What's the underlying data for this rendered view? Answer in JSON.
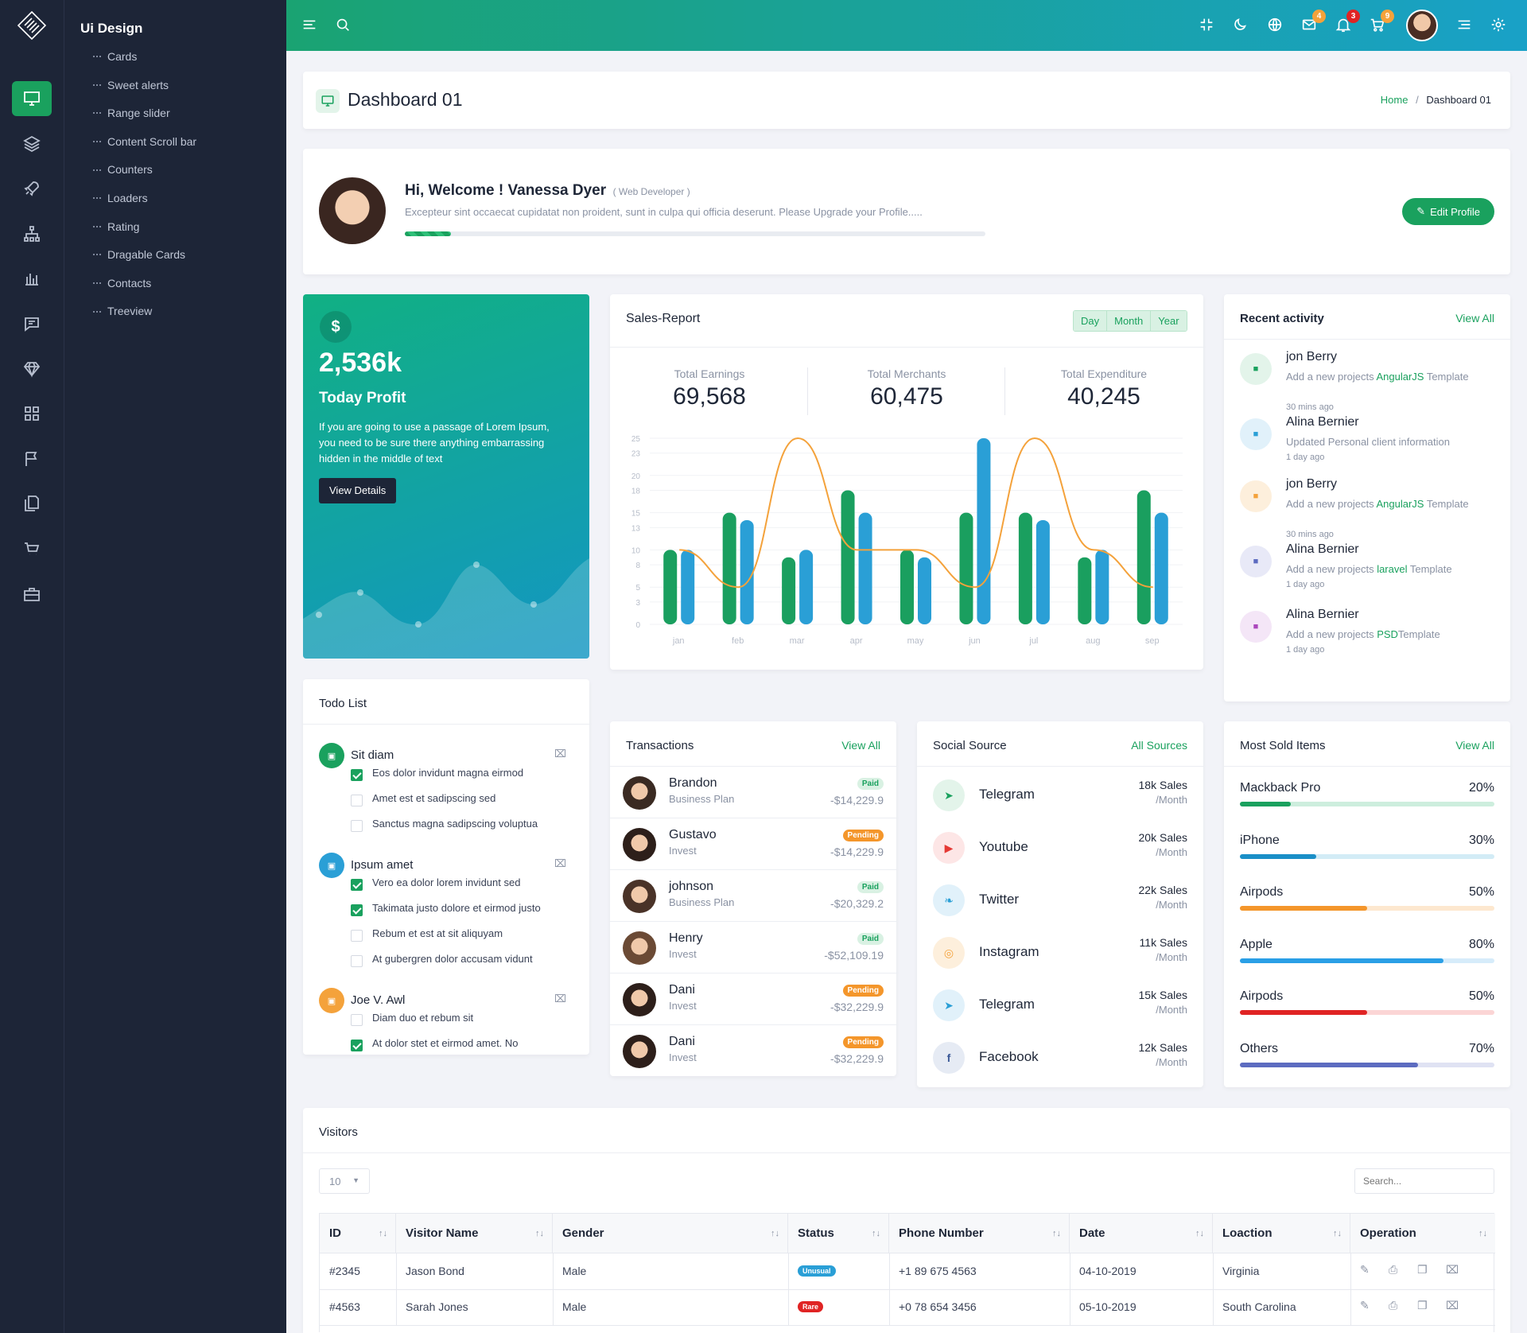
{
  "sidebar": {
    "title": "Ui Design",
    "items": [
      "Cards",
      "Sweet alerts",
      "Range slider",
      "Content Scroll bar",
      "Counters",
      "Loaders",
      "Rating",
      "Dragable Cards",
      "Contacts",
      "Treeview"
    ],
    "rail_icons": [
      "monitor-icon",
      "layers-icon",
      "rocket-icon",
      "sitemap-icon",
      "bar-chart-icon",
      "chat-icon",
      "diamond-icon",
      "grid-icon",
      "flag-icon",
      "copy-icon",
      "cart-icon",
      "briefcase-icon"
    ]
  },
  "topbar": {
    "badges": {
      "mail": "4",
      "bell": "3",
      "cart": "9"
    },
    "colors": {
      "from": "#1aa372",
      "to": "#19a1c7"
    }
  },
  "page": {
    "title": "Dashboard 01",
    "breadcrumb_home": "Home",
    "breadcrumb_current": "Dashboard 01"
  },
  "welcome": {
    "greeting": "Hi, Welcome ! Vanessa Dyer",
    "role": "( Web Developer )",
    "text": "Excepteur sint occaecat cupidatat non proident, sunt in culpa qui officia deserunt. Please Upgrade your Profile.....",
    "button": "Edit Profile",
    "progress": 0.08
  },
  "profit": {
    "symbol": "$",
    "value": "2,536k",
    "label": "Today Profit",
    "text": "If you are going to use a passage of Lorem Ipsum, you need to be sure there anything embarrassing hidden in the middle of text",
    "button": "View Details"
  },
  "sales": {
    "title": "Sales-Report",
    "tabs": [
      "Day",
      "Month",
      "Year"
    ],
    "stats": [
      {
        "label": "Total Earnings",
        "value": "69,568"
      },
      {
        "label": "Total Merchants",
        "value": "60,475"
      },
      {
        "label": "Total Expenditure",
        "value": "40,245"
      }
    ]
  },
  "chart_data": {
    "type": "bar",
    "categories": [
      "jan",
      "feb",
      "mar",
      "apr",
      "may",
      "jun",
      "jul",
      "aug",
      "sep"
    ],
    "yticks": [
      0,
      3,
      5,
      8,
      10,
      13,
      15,
      18,
      20,
      23,
      25
    ],
    "ylim": [
      0,
      25
    ],
    "series": [
      {
        "values": [
          10,
          15,
          9,
          18,
          10,
          15,
          15,
          9,
          18
        ],
        "color": "#1a9f5f"
      },
      {
        "values": [
          10,
          14,
          10,
          15,
          9,
          25,
          14,
          10,
          15
        ],
        "color": "#2a9fd6"
      },
      {
        "values": [
          10,
          5,
          25,
          10,
          10,
          5,
          25,
          10,
          5
        ],
        "color": "#f4a23b",
        "kind": "line"
      }
    ]
  },
  "activity": {
    "title": "Recent activity",
    "view_all": "View All",
    "items": [
      {
        "name": "jon Berry",
        "pre": "Add a new projects ",
        "link": "AngularJS",
        "post": " Template",
        "time": "30 mins ago"
      },
      {
        "name": "Alina Bernier",
        "pre": "Updated Personal client information",
        "link": "",
        "post": "",
        "time": "1 day ago"
      },
      {
        "name": "jon Berry",
        "pre": "Add a new projects ",
        "link": "AngularJS",
        "post": " Template",
        "time": "30 mins ago"
      },
      {
        "name": "Alina Bernier",
        "pre": "Add a new projects ",
        "link": "laravel",
        "post": " Template",
        "time": "1 day ago"
      },
      {
        "name": "Alina Bernier",
        "pre": "Add a new projects ",
        "link": "PSD",
        "post": "Template",
        "time": "1 day ago"
      }
    ]
  },
  "todo": {
    "title": "Todo List",
    "groups": [
      {
        "title": "Sit diam",
        "items": [
          {
            "text": "Eos dolor invidunt magna eirmod",
            "done": true
          },
          {
            "text": "Amet est et sadipscing sed",
            "done": false
          },
          {
            "text": "Sanctus magna sadipscing voluptua",
            "done": false
          }
        ]
      },
      {
        "title": "Ipsum amet",
        "items": [
          {
            "text": "Vero ea dolor lorem invidunt sed",
            "done": true
          },
          {
            "text": "Takimata justo dolore et eirmod justo",
            "done": true
          },
          {
            "text": "Rebum et est at sit aliquyam",
            "done": false
          },
          {
            "text": "At gubergren dolor accusam vidunt",
            "done": false
          }
        ]
      },
      {
        "title": "Joe V. Awl",
        "items": [
          {
            "text": "Diam duo et rebum sit",
            "done": false
          },
          {
            "text": "At dolor stet et eirmod amet. No",
            "done": true
          }
        ]
      }
    ]
  },
  "transactions": {
    "title": "Transactions",
    "view_all": "View All",
    "items": [
      {
        "name": "Brandon",
        "plan": "Business Plan",
        "status": "Paid",
        "amount": "-$14,229.9"
      },
      {
        "name": "Gustavo",
        "plan": "Invest",
        "status": "Pending",
        "amount": "-$14,229.9"
      },
      {
        "name": "johnson",
        "plan": "Business Plan",
        "status": "Paid",
        "amount": "-$20,329.2"
      },
      {
        "name": "Henry",
        "plan": "Invest",
        "status": "Paid",
        "amount": "-$52,109.19"
      },
      {
        "name": "Dani",
        "plan": "Invest",
        "status": "Pending",
        "amount": "-$32,229.9"
      },
      {
        "name": "Dani",
        "plan": "Invest",
        "status": "Pending",
        "amount": "-$32,229.9"
      }
    ]
  },
  "social": {
    "title": "Social Source",
    "all": "All Sources",
    "items": [
      {
        "name": "Telegram",
        "sales": "18k Sales",
        "per": "/Month",
        "color": "#1aa15e",
        "bg": "#e3f4ea",
        "icon": "telegram-icon"
      },
      {
        "name": "Youtube",
        "sales": "20k Sales",
        "per": "/Month",
        "color": "#e53935",
        "bg": "#fde6e6",
        "icon": "youtube-icon"
      },
      {
        "name": "Twitter",
        "sales": "22k Sales",
        "per": "/Month",
        "color": "#2a9fd6",
        "bg": "#e1f1fa",
        "icon": "twitter-icon"
      },
      {
        "name": "Instagram",
        "sales": "11k Sales",
        "per": "/Month",
        "color": "#f4a23b",
        "bg": "#fdefdc",
        "icon": "instagram-icon"
      },
      {
        "name": "Telegram",
        "sales": "15k Sales",
        "per": "/Month",
        "color": "#2a9fd6",
        "bg": "#e1f1fa",
        "icon": "telegram-icon"
      },
      {
        "name": "Facebook",
        "sales": "12k Sales",
        "per": "/Month",
        "color": "#3b5998",
        "bg": "#e6ebf4",
        "icon": "facebook-icon"
      }
    ]
  },
  "sold": {
    "title": "Most Sold Items",
    "view_all": "View All",
    "items": [
      {
        "name": "Mackback Pro",
        "pct": "20%",
        "value": 0.2,
        "color": "#1aa15e",
        "track": "#cdeedd"
      },
      {
        "name": "iPhone",
        "pct": "30%",
        "value": 0.3,
        "color": "#1a8fc7",
        "track": "#d3ecf6"
      },
      {
        "name": "Airpods",
        "pct": "50%",
        "value": 0.5,
        "color": "#f4962b",
        "track": "#fde8cf"
      },
      {
        "name": "Apple",
        "pct": "80%",
        "value": 0.8,
        "color": "#2a9fe6",
        "track": "#d6ecfa"
      },
      {
        "name": "Airpods",
        "pct": "50%",
        "value": 0.5,
        "color": "#e02424",
        "track": "#fbd5d5"
      },
      {
        "name": "Others",
        "pct": "70%",
        "value": 0.7,
        "color": "#5c6bc0",
        "track": "#dfe2f3"
      }
    ]
  },
  "visitors": {
    "title": "Visitors",
    "page_size": "10",
    "search_placeholder": "Search...",
    "columns": [
      "ID",
      "Visitor Name",
      "Gender",
      "Status",
      "Phone Number",
      "Date",
      "Loaction",
      "Operation"
    ],
    "rows": [
      {
        "id": "#2345",
        "name": "Jason Bond",
        "gender": "Male",
        "status": "Unusual",
        "status_color": "#2a9fd6",
        "phone": "+1 89 675 4563",
        "date": "04-10-2019",
        "location": "Virginia"
      },
      {
        "id": "#4563",
        "name": "Sarah Jones",
        "gender": "Male",
        "status": "Rare",
        "status_color": "#e02424",
        "phone": "+0 78 654 3456",
        "date": "05-10-2019",
        "location": "South Carolina"
      }
    ]
  }
}
